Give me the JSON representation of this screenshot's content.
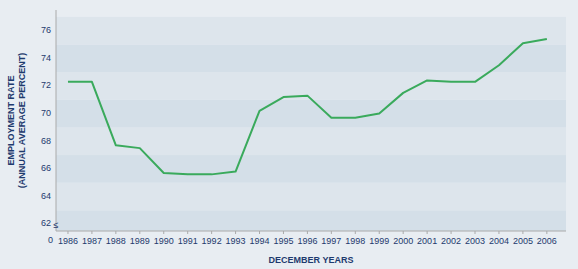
{
  "chart_data": {
    "type": "line",
    "x": [
      1986,
      1987,
      1988,
      1989,
      1990,
      1991,
      1992,
      1993,
      1994,
      1995,
      1996,
      1997,
      1998,
      1999,
      2000,
      2001,
      2002,
      2003,
      2004,
      2005,
      2006
    ],
    "values": [
      72.3,
      72.3,
      67.7,
      67.5,
      65.7,
      65.6,
      65.6,
      65.8,
      70.2,
      71.2,
      71.3,
      69.7,
      69.7,
      70.0,
      71.5,
      72.4,
      72.3,
      72.3,
      73.5,
      75.1,
      75.4
    ],
    "color": "#3aaa5c",
    "xlabel": "DECEMBER YEARS",
    "ylabel": "EMPLOYMENT RATE\n(ANNUAL AVERAGE PERCENT)",
    "xlim": [
      1985.5,
      2006.8
    ],
    "ylim": [
      61.5,
      77.5
    ],
    "xticks": [
      1986,
      1987,
      1988,
      1989,
      1990,
      1991,
      1992,
      1993,
      1994,
      1995,
      1996,
      1997,
      1998,
      1999,
      2000,
      2001,
      2002,
      2003,
      2004,
      2005,
      2006
    ],
    "yticks": [
      62,
      64,
      66,
      68,
      70,
      72,
      74,
      76
    ],
    "grid": true,
    "annotations": [
      "0",
      "≤"
    ]
  }
}
